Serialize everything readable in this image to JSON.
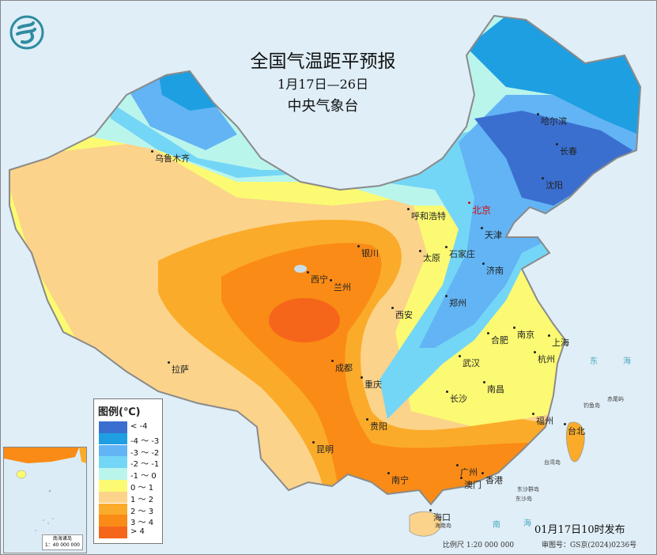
{
  "header": {
    "title": "全国气温距平预报",
    "date_range": "1月17日—26日",
    "issuer": "中央气象台",
    "logo": "cma-logo"
  },
  "legend": {
    "title": "图例(℃)",
    "items": [
      {
        "label": "< -4",
        "color": "#3a6fd0"
      },
      {
        "label": "-4 ～ -3",
        "color": "#1e9fe2"
      },
      {
        "label": "-3 ～ -2",
        "color": "#62b4f4"
      },
      {
        "label": "-2 ～ -1",
        "color": "#74d6f6"
      },
      {
        "label": "-1 ～ 0",
        "color": "#baf5ec"
      },
      {
        "label": "0 ～ 1",
        "color": "#fbfa72"
      },
      {
        "label": "1 ～ 2",
        "color": "#fbd38a"
      },
      {
        "label": "2 ～ 3",
        "color": "#fbab2a"
      },
      {
        "label": "3 ～ 4",
        "color": "#f98b16"
      },
      {
        "label": "> 4",
        "color": "#f6661a"
      }
    ]
  },
  "cities": {
    "wulumuqi": "乌鲁木齐",
    "haerbin": "哈尔滨",
    "changchun": "长春",
    "shenyang": "沈阳",
    "beijing": "北京",
    "tianjin": "天津",
    "huhehaote": "呼和浩特",
    "shijiazhuang": "石家庄",
    "taiyuan": "太原",
    "jinan": "济南",
    "yinchuan": "银川",
    "xining": "西宁",
    "lanzhou": "兰州",
    "zhengzhou": "郑州",
    "xian": "西安",
    "hefei": "合肥",
    "nanjing": "南京",
    "shanghai": "上海",
    "wuhan": "武汉",
    "hangzhou": "杭州",
    "chengdu": "成都",
    "chongqing": "重庆",
    "changsha": "长沙",
    "nanchang": "南昌",
    "lasa": "拉萨",
    "guiyang": "贵阳",
    "fuzhou": "福州",
    "taibei": "台北",
    "kunming": "昆明",
    "nanning": "南宁",
    "guangzhou": "广州",
    "aomen": "澳门",
    "xianggang": "香港",
    "haikou": "海口"
  },
  "seas": {
    "donghai_1": "东",
    "donghai_2": "海",
    "nanhai_1": "南",
    "nanhai_2": "海"
  },
  "islands": {
    "diaoyu": "钓鱼岛",
    "chiwei": "赤尾屿",
    "taiwan": "台湾岛",
    "dongsha_islands": "东沙群岛",
    "dongsha": "东沙岛",
    "hainan": "海南岛"
  },
  "inset": {
    "title": "南海诸岛",
    "scale": "1：40 000 000"
  },
  "footer": {
    "issued": "01月17日10时发布",
    "scale": "比例尺 1:20 000 000",
    "review_no": "审图号：GS京(2024)0236号"
  }
}
